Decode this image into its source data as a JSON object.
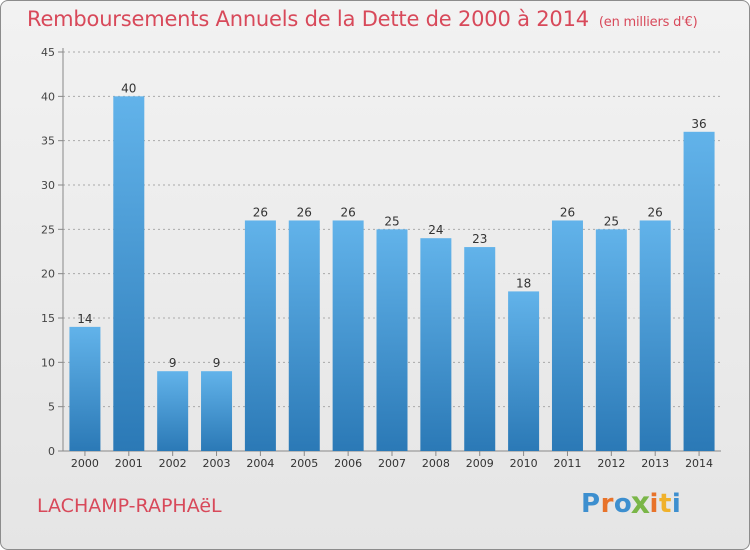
{
  "header": {
    "title": "Remboursements Annuels de la Dette de 2000 à 2014",
    "unit": "(en milliers d'€)"
  },
  "footer": {
    "town": "LACHAMP-RAPHAëL",
    "logo_letters": [
      "P",
      "r",
      "o",
      "x",
      "i",
      "t",
      "i"
    ],
    "logo_colors": [
      "#3d8fcf",
      "#e8732a",
      "#3d8fcf",
      "#7ab648",
      "#e8732a",
      "#f0b12a",
      "#3d8fcf"
    ]
  },
  "colors": {
    "title": "#d8495a",
    "bar_light": "#62b3ea",
    "bar_dark": "#2b79b6",
    "axis": "#888888",
    "grid": "#a9a9a9"
  },
  "chart_data": {
    "type": "bar",
    "title": "Remboursements Annuels de la Dette de 2000 à 2014",
    "xlabel": "",
    "ylabel": "",
    "categories": [
      "2000",
      "2001",
      "2002",
      "2003",
      "2004",
      "2005",
      "2006",
      "2007",
      "2008",
      "2009",
      "2010",
      "2011",
      "2012",
      "2013",
      "2014"
    ],
    "values": [
      14,
      40,
      9,
      9,
      26,
      26,
      26,
      25,
      24,
      23,
      18,
      26,
      25,
      26,
      36
    ],
    "ylim": [
      0,
      45
    ],
    "yticks": [
      0,
      5,
      10,
      15,
      20,
      25,
      30,
      35,
      40,
      45
    ],
    "grid": true
  }
}
